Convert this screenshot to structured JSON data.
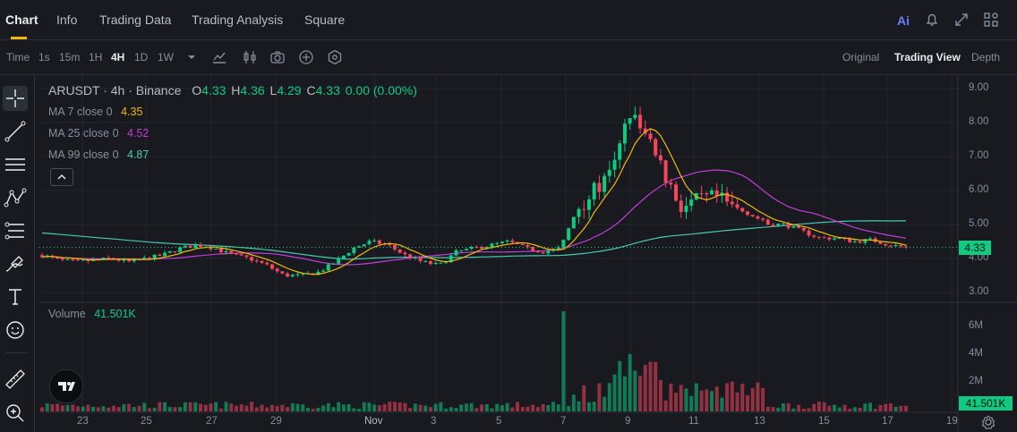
{
  "tabs": [
    "Chart",
    "Info",
    "Trading Data",
    "Trading Analysis",
    "Square"
  ],
  "toolbar": {
    "time_label": "Time",
    "intervals": [
      "1s",
      "15m",
      "1H",
      "4H",
      "1D",
      "1W"
    ],
    "active_interval": "4H",
    "views": [
      "Original",
      "Trading View",
      "Depth"
    ],
    "active_view": "Trading View"
  },
  "legend": {
    "symbol": "ARUSDT · 4h · Binance",
    "open_label": "O",
    "open": "4.33",
    "high_label": "H",
    "high": "4.36",
    "low_label": "L",
    "low": "4.29",
    "close_label": "C",
    "close": "4.33",
    "change": "0.00 (0.00%)",
    "ma7_label": "MA 7 close 0",
    "ma7": "4.35",
    "ma25_label": "MA 25 close 0",
    "ma25": "4.52",
    "ma99_label": "MA 99 close 0",
    "ma99": "4.87",
    "volume_label": "Volume",
    "volume": "41.501K"
  },
  "price_axis": [
    "9.00",
    "8.00",
    "7.00",
    "6.00",
    "5.00",
    "4.00",
    "3.00"
  ],
  "volume_axis": [
    "6M",
    "4M",
    "2M"
  ],
  "current_price": "4.33",
  "current_volume": "41.501K",
  "date_axis": [
    "23",
    "25",
    "27",
    "29",
    "Nov",
    "3",
    "5",
    "7",
    "9",
    "11",
    "13",
    "15",
    "17",
    "19"
  ],
  "colors": {
    "up": "#0ecb81",
    "down": "#f6465d",
    "ma7": "#f0b90b",
    "ma25": "#c23ed8",
    "ma99": "#48c9b0",
    "accent": "#f0b90b"
  },
  "chart_data": {
    "type": "candlestick",
    "candles_close_trend": [
      4.1,
      3.95,
      3.9,
      3.95,
      4.0,
      3.9,
      4.0,
      4.1,
      4.3,
      4.4,
      4.3,
      4.1,
      4.0,
      3.8,
      3.5,
      3.5,
      3.6,
      3.9,
      4.3,
      4.5,
      4.4,
      4.1,
      3.9,
      3.8,
      4.2,
      4.3,
      4.4,
      4.5,
      4.3,
      4.2,
      4.3,
      5.5,
      6.0,
      6.5,
      8.3,
      7.5,
      6.5,
      5.5,
      5.7,
      5.8,
      5.5,
      5.3,
      5.0,
      5.0,
      4.8,
      4.6,
      4.6,
      4.5,
      4.55,
      4.4,
      4.33
    ],
    "ma7": 4.35,
    "ma25": 4.52,
    "ma99": 4.87,
    "ylim": [
      3.0,
      9.0
    ],
    "volume_ylim": [
      0,
      7000000
    ]
  }
}
